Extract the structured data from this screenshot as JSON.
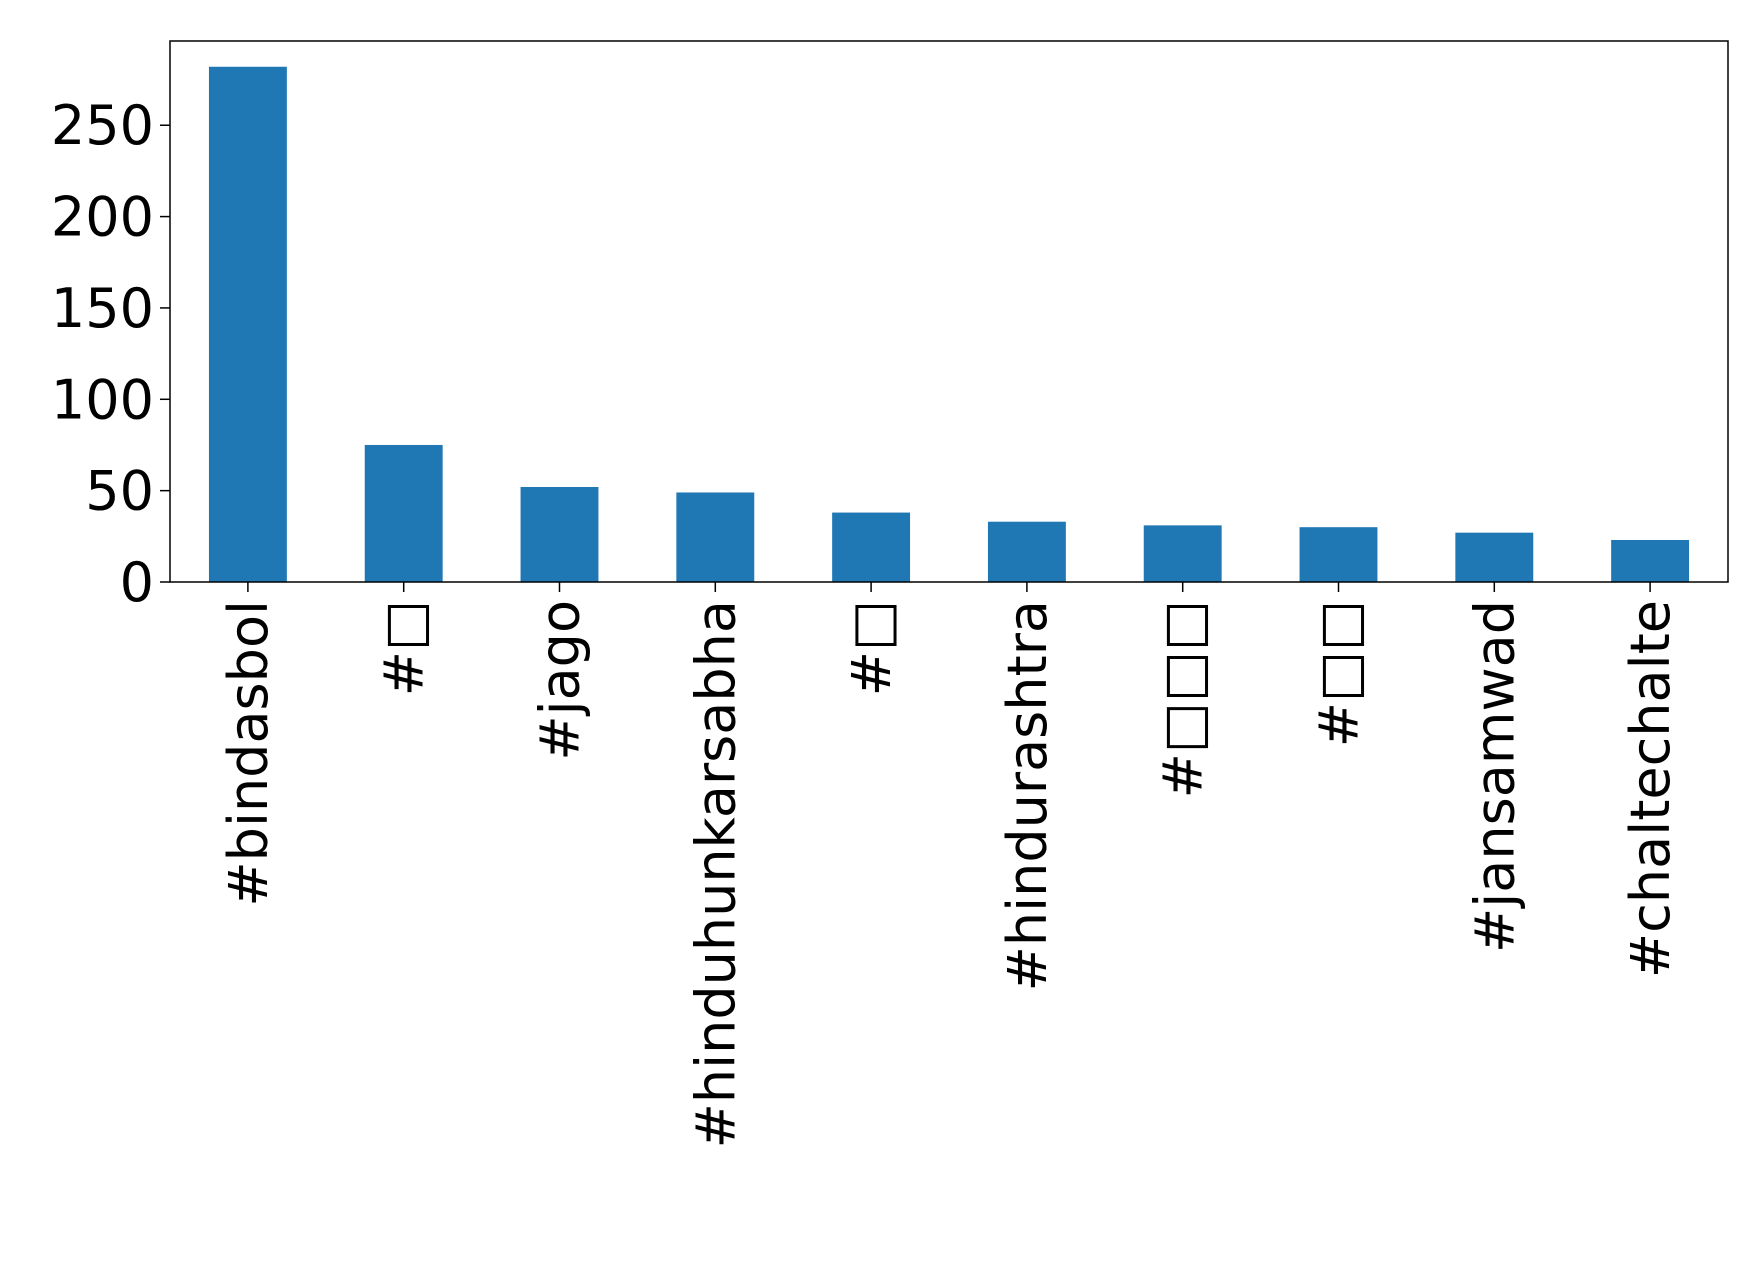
{
  "chart_data": {
    "type": "bar",
    "categories": [
      "#bindasbol",
      "#□",
      "#jago",
      "#hinduhunkarsabha",
      "#□",
      "#hindurashtra",
      "#□□□",
      "#□□",
      "#jansamwad",
      "#chaltechalte"
    ],
    "values": [
      282,
      75,
      52,
      49,
      38,
      33,
      31,
      30,
      27,
      23
    ],
    "color": "#1f77b4",
    "ylim": [
      0,
      296.1
    ],
    "yticks": [
      0,
      50,
      100,
      150,
      200,
      250
    ],
    "grid": false
  }
}
